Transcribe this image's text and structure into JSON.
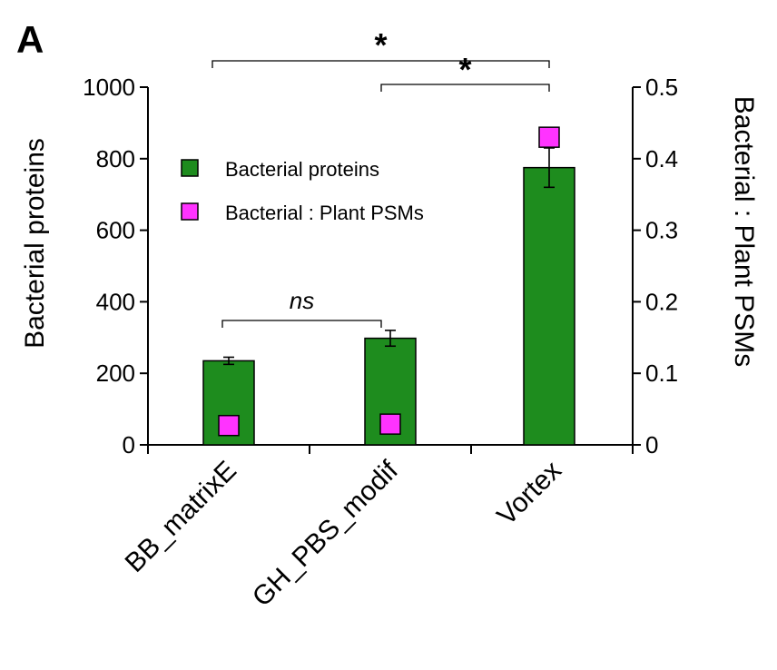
{
  "panel_label": "A",
  "chart_data": {
    "type": "bar",
    "categories": [
      "BB_matrixE",
      "GH_PBS_modif",
      "Vortex"
    ],
    "y_left": {
      "label": "Bacterial proteins",
      "lim": [
        0,
        1000
      ],
      "ticks": [
        0,
        200,
        400,
        600,
        800,
        1000
      ]
    },
    "y_right": {
      "label": "Bacterial : Plant PSMs",
      "lim": [
        0,
        0.5
      ],
      "ticks": [
        0,
        0.1,
        0.2,
        0.3,
        0.4,
        0.5
      ]
    },
    "series": [
      {
        "name": "Bacterial proteins",
        "kind": "bar",
        "axis": "left",
        "color": "#1e8c1e",
        "values": [
          235,
          298,
          775
        ],
        "errors": [
          10,
          22,
          55
        ]
      },
      {
        "name": "Bacterial : Plant PSMs",
        "kind": "marker",
        "axis": "right",
        "color": "#ff33ff",
        "values": [
          0.027,
          0.029,
          0.43
        ]
      }
    ],
    "legend": {
      "placement": "top-left"
    },
    "significance": [
      {
        "from": 0,
        "to": 2,
        "label": "*"
      },
      {
        "from": 1,
        "to": 2,
        "label": "*"
      },
      {
        "from": 0,
        "to": 1,
        "label": "ns"
      }
    ],
    "grid": false
  }
}
